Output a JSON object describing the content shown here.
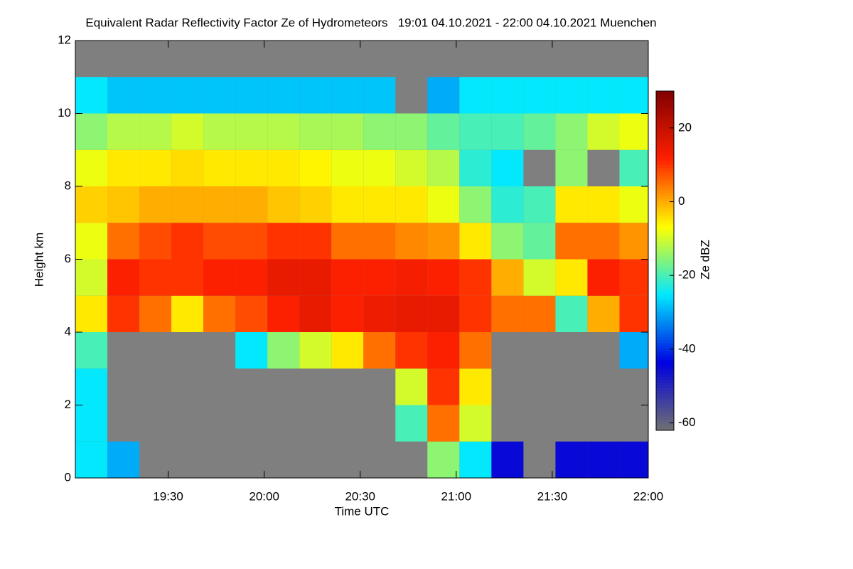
{
  "chart_data": {
    "type": "heatmap",
    "title": "Equivalent Radar Reflectivity Factor Ze of Hydrometeors   19:01 04.10.2021 - 22:00 04.10.2021 Muenchen",
    "xlabel": "Time UTC",
    "ylabel": "Height km",
    "colorbar_label": "Ze dBZ",
    "xlim": [
      1141,
      1320
    ],
    "xticks": [
      {
        "value": 1170,
        "label": "19:30"
      },
      {
        "value": 1200,
        "label": "20:00"
      },
      {
        "value": 1230,
        "label": "20:30"
      },
      {
        "value": 1260,
        "label": "21:00"
      },
      {
        "value": 1290,
        "label": "21:30"
      },
      {
        "value": 1320,
        "label": "22:00"
      }
    ],
    "ylim": [
      0,
      12
    ],
    "yticks": [
      0,
      2,
      4,
      6,
      8,
      10,
      12
    ],
    "zlim": [
      -62,
      30
    ],
    "zticks": [
      -60,
      -40,
      -20,
      0,
      20
    ],
    "colormap": [
      "#707070",
      "#0000e0",
      "#00e8ff",
      "#ffff00",
      "#ff2000",
      "#800000"
    ],
    "missing_color": "#7f7f7f",
    "x": [
      1146,
      1156,
      1166,
      1176,
      1186,
      1196,
      1206,
      1216,
      1226,
      1236,
      1246,
      1256,
      1266,
      1276,
      1286,
      1296,
      1306,
      1316
    ],
    "y": [
      0.5,
      1.5,
      2.5,
      3.5,
      4.5,
      5.5,
      6.5,
      7.5,
      8.5,
      9.5,
      10.5,
      11.5
    ],
    "z": [
      [
        -25,
        -30,
        null,
        null,
        null,
        null,
        null,
        null,
        null,
        null,
        null,
        -15,
        -25,
        -45,
        null,
        -45,
        -45,
        -45
      ],
      [
        -25,
        null,
        null,
        null,
        null,
        null,
        null,
        null,
        null,
        null,
        -20,
        5,
        -10,
        null,
        null,
        null,
        null,
        null
      ],
      [
        -25,
        null,
        null,
        null,
        null,
        null,
        null,
        null,
        null,
        null,
        -10,
        10,
        -5,
        null,
        null,
        null,
        null,
        null
      ],
      [
        -20,
        null,
        null,
        null,
        null,
        -25,
        -15,
        -10,
        -5,
        5,
        10,
        12,
        5,
        null,
        null,
        null,
        null,
        -30
      ],
      [
        -5,
        10,
        5,
        -5,
        5,
        8,
        12,
        15,
        12,
        14,
        15,
        15,
        10,
        5,
        5,
        -20,
        0,
        10
      ],
      [
        -10,
        12,
        10,
        10,
        12,
        12,
        15,
        15,
        12,
        12,
        13,
        12,
        10,
        0,
        -10,
        -5,
        12,
        10
      ],
      [
        -8,
        5,
        8,
        10,
        8,
        8,
        10,
        10,
        5,
        5,
        3,
        2,
        -5,
        -15,
        -18,
        5,
        5,
        2
      ],
      [
        -3,
        -2,
        0,
        0,
        0,
        0,
        -2,
        -3,
        -5,
        -5,
        -5,
        -8,
        -15,
        -22,
        -20,
        -5,
        -5,
        -8
      ],
      [
        -8,
        -5,
        -5,
        -4,
        -5,
        -5,
        -5,
        -6,
        -8,
        -8,
        -10,
        -12,
        -22,
        -25,
        null,
        -15,
        null,
        -20
      ],
      [
        -15,
        -12,
        -12,
        -10,
        -12,
        -12,
        -12,
        -13,
        -13,
        -15,
        -15,
        -18,
        -20,
        -20,
        -18,
        -15,
        -10,
        -8
      ],
      [
        -25,
        -28,
        -28,
        -28,
        -28,
        -28,
        -28,
        -28,
        -28,
        -28,
        null,
        -30,
        -25,
        -25,
        -25,
        -25,
        -25,
        -25
      ],
      [
        null,
        null,
        null,
        null,
        null,
        null,
        null,
        null,
        null,
        null,
        null,
        null,
        null,
        null,
        null,
        null,
        null,
        null
      ]
    ]
  }
}
